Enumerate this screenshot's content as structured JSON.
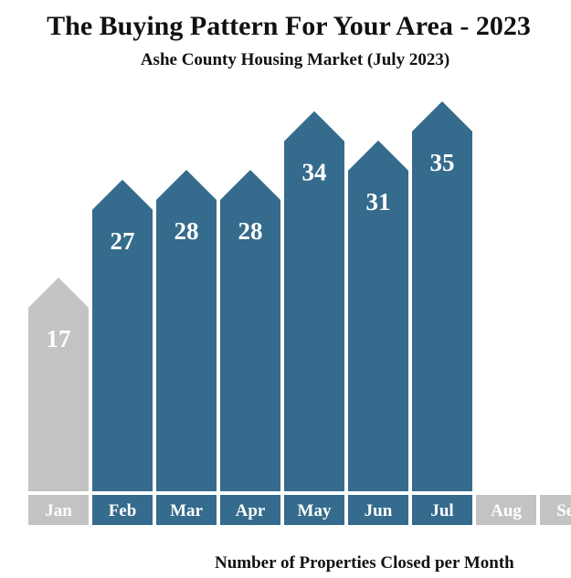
{
  "header": {
    "title": "The Buying Pattern For Your Area - 2023",
    "subtitle": "Ashe County Housing Market (July 2023)"
  },
  "footer": {
    "caption": "Number of Properties Closed per Month"
  },
  "colors": {
    "active": "#356b8c",
    "inactive": "#c3c3c3",
    "text": "#ffffff"
  },
  "chart_data": {
    "type": "bar",
    "title": "The Buying Pattern For Your Area - 2023",
    "subtitle": "Ashe County Housing Market (July 2023)",
    "xlabel": "Number of Properties Closed per Month",
    "ylabel": "",
    "categories": [
      "Jan",
      "Feb",
      "Mar",
      "Apr",
      "May",
      "Jun",
      "Jul",
      "Aug",
      "Sep"
    ],
    "values": [
      17,
      27,
      28,
      28,
      34,
      31,
      35,
      null,
      null
    ],
    "highlighted": [
      false,
      true,
      true,
      true,
      true,
      true,
      true,
      false,
      false
    ],
    "grid": false,
    "legend": "none"
  }
}
